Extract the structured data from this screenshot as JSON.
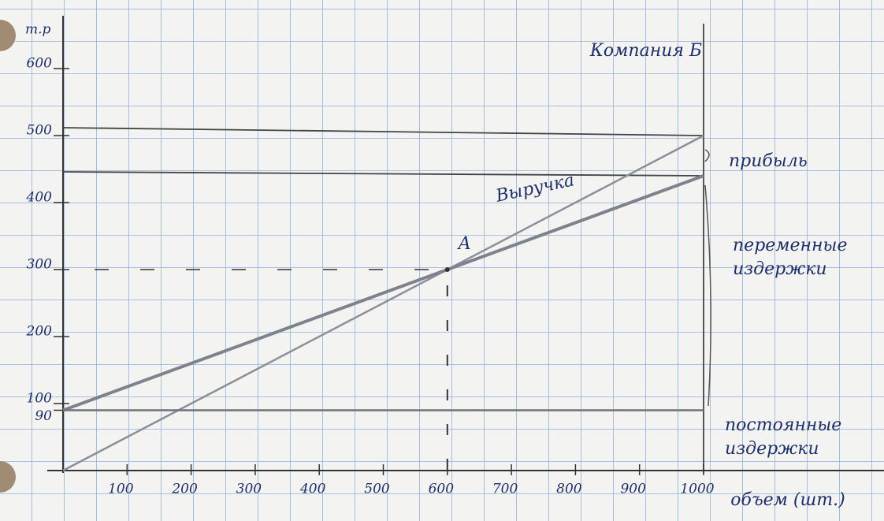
{
  "chart_data": {
    "type": "line",
    "title": "Компания Б",
    "y_label": "т.р",
    "x_label": "объем (шт.)",
    "x": [
      0,
      600,
      1000
    ],
    "series": [
      {
        "name": "Выручка",
        "color": "#8a8f99",
        "values": [
          0,
          300,
          500
        ]
      },
      {
        "color": "#7d828c",
        "values": [
          90,
          300,
          440
        ]
      },
      {
        "color": "#6f737a",
        "values": [
          90,
          90,
          90
        ]
      }
    ],
    "point": {
      "label": "A",
      "x": 600,
      "y": 300
    },
    "annotations": [
      "прибыль",
      "переменные издержки",
      "постоянные издержки"
    ],
    "xlim": [
      0,
      1000
    ],
    "ylim": [
      0,
      600
    ],
    "xticks": [
      100,
      200,
      300,
      400,
      500,
      600,
      700,
      800,
      900,
      1000
    ],
    "yticks": [
      90,
      100,
      200,
      300,
      400,
      500,
      600
    ]
  }
}
